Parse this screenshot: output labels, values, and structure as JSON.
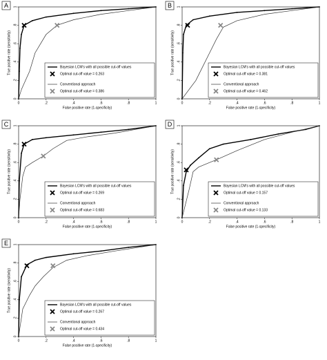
{
  "chart_data": [
    {
      "type": "line",
      "label": "A",
      "xlabel": "False positive rate (1-specificity)",
      "ylabel": "True positive rate (sensitivity)",
      "xlim": [
        0,
        1
      ],
      "ylim": [
        0,
        1
      ],
      "xticks": [
        0,
        {
          "value": 0.2,
          "label": ".2"
        },
        {
          "value": 0.4,
          "label": ".4"
        },
        {
          "value": 0.6,
          "label": ".6"
        },
        {
          "value": 0.8,
          "label": ".8"
        },
        1
      ],
      "yticks": [
        0,
        {
          "value": 0.2,
          "label": ".2"
        },
        {
          "value": 0.4,
          "label": ".4"
        },
        {
          "value": 0.6,
          "label": ".6"
        },
        {
          "value": 0.8,
          "label": ".8"
        },
        1
      ],
      "series": [
        {
          "name": "Bayesian LCM's with all possible cut-off values",
          "color": "#000000",
          "x": [
            0,
            0.005,
            0.01,
            0.02,
            0.04,
            0.1,
            0.2,
            0.4,
            0.6,
            0.8,
            1
          ],
          "values": [
            0,
            0.3,
            0.55,
            0.7,
            0.8,
            0.85,
            0.89,
            0.93,
            0.96,
            0.98,
            1
          ],
          "optimal": {
            "x": 0.04,
            "y": 0.8,
            "label": "Optimal cut-off value = 0.263",
            "color": "#000000"
          }
        },
        {
          "name": "Conventional approach",
          "color": "#333333",
          "x": [
            0,
            0.02,
            0.05,
            0.08,
            0.12,
            0.16,
            0.2,
            0.28,
            0.4,
            0.6,
            0.8,
            1
          ],
          "values": [
            0,
            0.1,
            0.2,
            0.3,
            0.5,
            0.6,
            0.7,
            0.8,
            0.86,
            0.92,
            0.96,
            1
          ],
          "optimal": {
            "x": 0.28,
            "y": 0.8,
            "label": "Optimal cut-off value = 0.386",
            "color": "#888888"
          }
        }
      ]
    },
    {
      "type": "line",
      "label": "B",
      "xlabel": "False positive rate (1-specificity)",
      "ylabel": "True positive rate (sensitivity)",
      "xlim": [
        0,
        1
      ],
      "ylim": [
        0,
        1
      ],
      "xticks": [
        0,
        {
          "value": 0.2,
          "label": ".2"
        },
        {
          "value": 0.4,
          "label": ".4"
        },
        {
          "value": 0.6,
          "label": ".6"
        },
        {
          "value": 0.8,
          "label": ".8"
        },
        1
      ],
      "yticks": [
        0,
        {
          "value": 0.2,
          "label": ".2"
        },
        {
          "value": 0.4,
          "label": ".4"
        },
        {
          "value": 0.6,
          "label": ".6"
        },
        {
          "value": 0.8,
          "label": ".8"
        },
        1
      ],
      "series": [
        {
          "name": "Bayesian LCM's with all possible cut-off values",
          "color": "#000000",
          "x": [
            0,
            0.005,
            0.01,
            0.03,
            0.08,
            0.2,
            0.4,
            0.6,
            0.8,
            1
          ],
          "values": [
            0,
            0.5,
            0.7,
            0.8,
            0.86,
            0.9,
            0.94,
            0.96,
            0.98,
            1
          ],
          "optimal": {
            "x": 0.04,
            "y": 0.8,
            "label": "Optimal cut-off value = 0.381",
            "color": "#000000"
          }
        },
        {
          "name": "Conventional approach",
          "color": "#333333",
          "x": [
            0,
            0.05,
            0.1,
            0.15,
            0.2,
            0.25,
            0.3,
            0.4,
            0.6,
            0.8,
            1
          ],
          "values": [
            0,
            0.1,
            0.2,
            0.35,
            0.5,
            0.65,
            0.78,
            0.85,
            0.92,
            0.96,
            1
          ],
          "optimal": {
            "x": 0.28,
            "y": 0.8,
            "label": "Optimal cut-off value = 0.462",
            "color": "#888888"
          }
        }
      ]
    },
    {
      "type": "line",
      "label": "C",
      "xlabel": "False positive rate (1-specificity)",
      "ylabel": "True positive rate (sensitivity)",
      "xlim": [
        0,
        1
      ],
      "ylim": [
        0,
        1
      ],
      "xticks": [
        0,
        {
          "value": 0.2,
          "label": ".2"
        },
        {
          "value": 0.4,
          "label": ".4"
        },
        {
          "value": 0.6,
          "label": ".6"
        },
        {
          "value": 0.8,
          "label": ".8"
        },
        1
      ],
      "yticks": [
        0,
        {
          "value": 0.2,
          "label": ".2"
        },
        {
          "value": 0.4,
          "label": ".4"
        },
        {
          "value": 0.6,
          "label": ".6"
        },
        {
          "value": 0.8,
          "label": ".8"
        },
        1
      ],
      "series": [
        {
          "name": "Bayesian LCM's with all possible cut-off values",
          "color": "#000000",
          "x": [
            0,
            0.005,
            0.02,
            0.04,
            0.1,
            0.2,
            0.4,
            0.6,
            0.8,
            1
          ],
          "values": [
            0,
            0.4,
            0.7,
            0.8,
            0.85,
            0.87,
            0.9,
            0.93,
            0.96,
            1
          ],
          "optimal": {
            "x": 0.04,
            "y": 0.8,
            "label": "Optimal cut-off value = 0.269",
            "color": "#000000"
          }
        },
        {
          "name": "Conventional approach",
          "color": "#333333",
          "x": [
            0,
            0.01,
            0.03,
            0.05,
            0.1,
            0.18,
            0.25,
            0.35,
            0.5,
            0.7,
            1
          ],
          "values": [
            0,
            0.2,
            0.45,
            0.55,
            0.6,
            0.67,
            0.75,
            0.84,
            0.88,
            0.92,
            1
          ],
          "optimal": {
            "x": 0.18,
            "y": 0.67,
            "label": "Optimal cut-off value = 0.683",
            "color": "#888888"
          }
        }
      ]
    },
    {
      "type": "line",
      "label": "D",
      "xlabel": "False positive rate (1-specificity)",
      "ylabel": "True positive rate (sensitivity)",
      "xlim": [
        0,
        1
      ],
      "ylim": [
        0,
        1
      ],
      "xticks": [
        0,
        {
          "value": 0.2,
          "label": ".2"
        },
        {
          "value": 0.4,
          "label": ".4"
        },
        {
          "value": 0.6,
          "label": ".6"
        },
        {
          "value": 0.8,
          "label": ".8"
        },
        1
      ],
      "yticks": [
        0,
        {
          "value": 0.2,
          "label": ".2"
        },
        {
          "value": 0.4,
          "label": ".4"
        },
        {
          "value": 0.6,
          "label": ".6"
        },
        {
          "value": 0.8,
          "label": ".8"
        },
        1
      ],
      "series": [
        {
          "name": "Bayesian LCM's with all possible cut-off values",
          "color": "#000000",
          "x": [
            0,
            0.01,
            0.03,
            0.06,
            0.12,
            0.2,
            0.3,
            0.5,
            0.7,
            0.9,
            1
          ],
          "values": [
            0,
            0.35,
            0.5,
            0.57,
            0.65,
            0.75,
            0.8,
            0.85,
            0.91,
            0.96,
            1
          ],
          "optimal": {
            "x": 0.03,
            "y": 0.52,
            "label": "Optimal cut-off value = 0.157",
            "color": "#000000"
          }
        },
        {
          "name": "Conventional approach",
          "color": "#333333",
          "x": [
            0,
            0.05,
            0.08,
            0.12,
            0.2,
            0.25,
            0.4,
            0.6,
            0.8,
            1
          ],
          "values": [
            0,
            0.3,
            0.5,
            0.55,
            0.6,
            0.63,
            0.73,
            0.85,
            0.93,
            1
          ],
          "optimal": {
            "x": 0.25,
            "y": 0.63,
            "label": "Optimal cut-off value = 0.133",
            "color": "#888888"
          }
        }
      ]
    },
    {
      "type": "line",
      "label": "E",
      "xlabel": "False positive rate (1-specificity)",
      "ylabel": "True positive rate (sensitivity)",
      "xlim": [
        0,
        1
      ],
      "ylim": [
        0,
        1
      ],
      "xticks": [
        0,
        {
          "value": 0.2,
          "label": ".2"
        },
        {
          "value": 0.4,
          "label": ".4"
        },
        {
          "value": 0.6,
          "label": ".6"
        },
        {
          "value": 0.8,
          "label": ".8"
        },
        1
      ],
      "yticks": [
        0,
        {
          "value": 0.2,
          "label": ".2"
        },
        {
          "value": 0.4,
          "label": ".4"
        },
        {
          "value": 0.6,
          "label": ".6"
        },
        {
          "value": 0.8,
          "label": ".8"
        },
        1
      ],
      "series": [
        {
          "name": "Bayesian LCM's with all possible cut-off values",
          "color": "#000000",
          "x": [
            0,
            0.005,
            0.02,
            0.06,
            0.12,
            0.2,
            0.4,
            0.6,
            0.8,
            1
          ],
          "values": [
            0,
            0.4,
            0.65,
            0.78,
            0.83,
            0.86,
            0.9,
            0.93,
            0.97,
            1
          ],
          "optimal": {
            "x": 0.06,
            "y": 0.77,
            "label": "Optimal cut-off value = 0.267",
            "color": "#000000"
          }
        },
        {
          "name": "Conventional approach",
          "color": "#333333",
          "x": [
            0,
            0.03,
            0.08,
            0.12,
            0.18,
            0.25,
            0.35,
            0.5,
            0.7,
            1
          ],
          "values": [
            0,
            0.3,
            0.45,
            0.55,
            0.65,
            0.75,
            0.83,
            0.88,
            0.93,
            1
          ],
          "optimal": {
            "x": 0.25,
            "y": 0.77,
            "label": "Optimal cut-off value = 0.434",
            "color": "#888888"
          }
        }
      ]
    }
  ]
}
